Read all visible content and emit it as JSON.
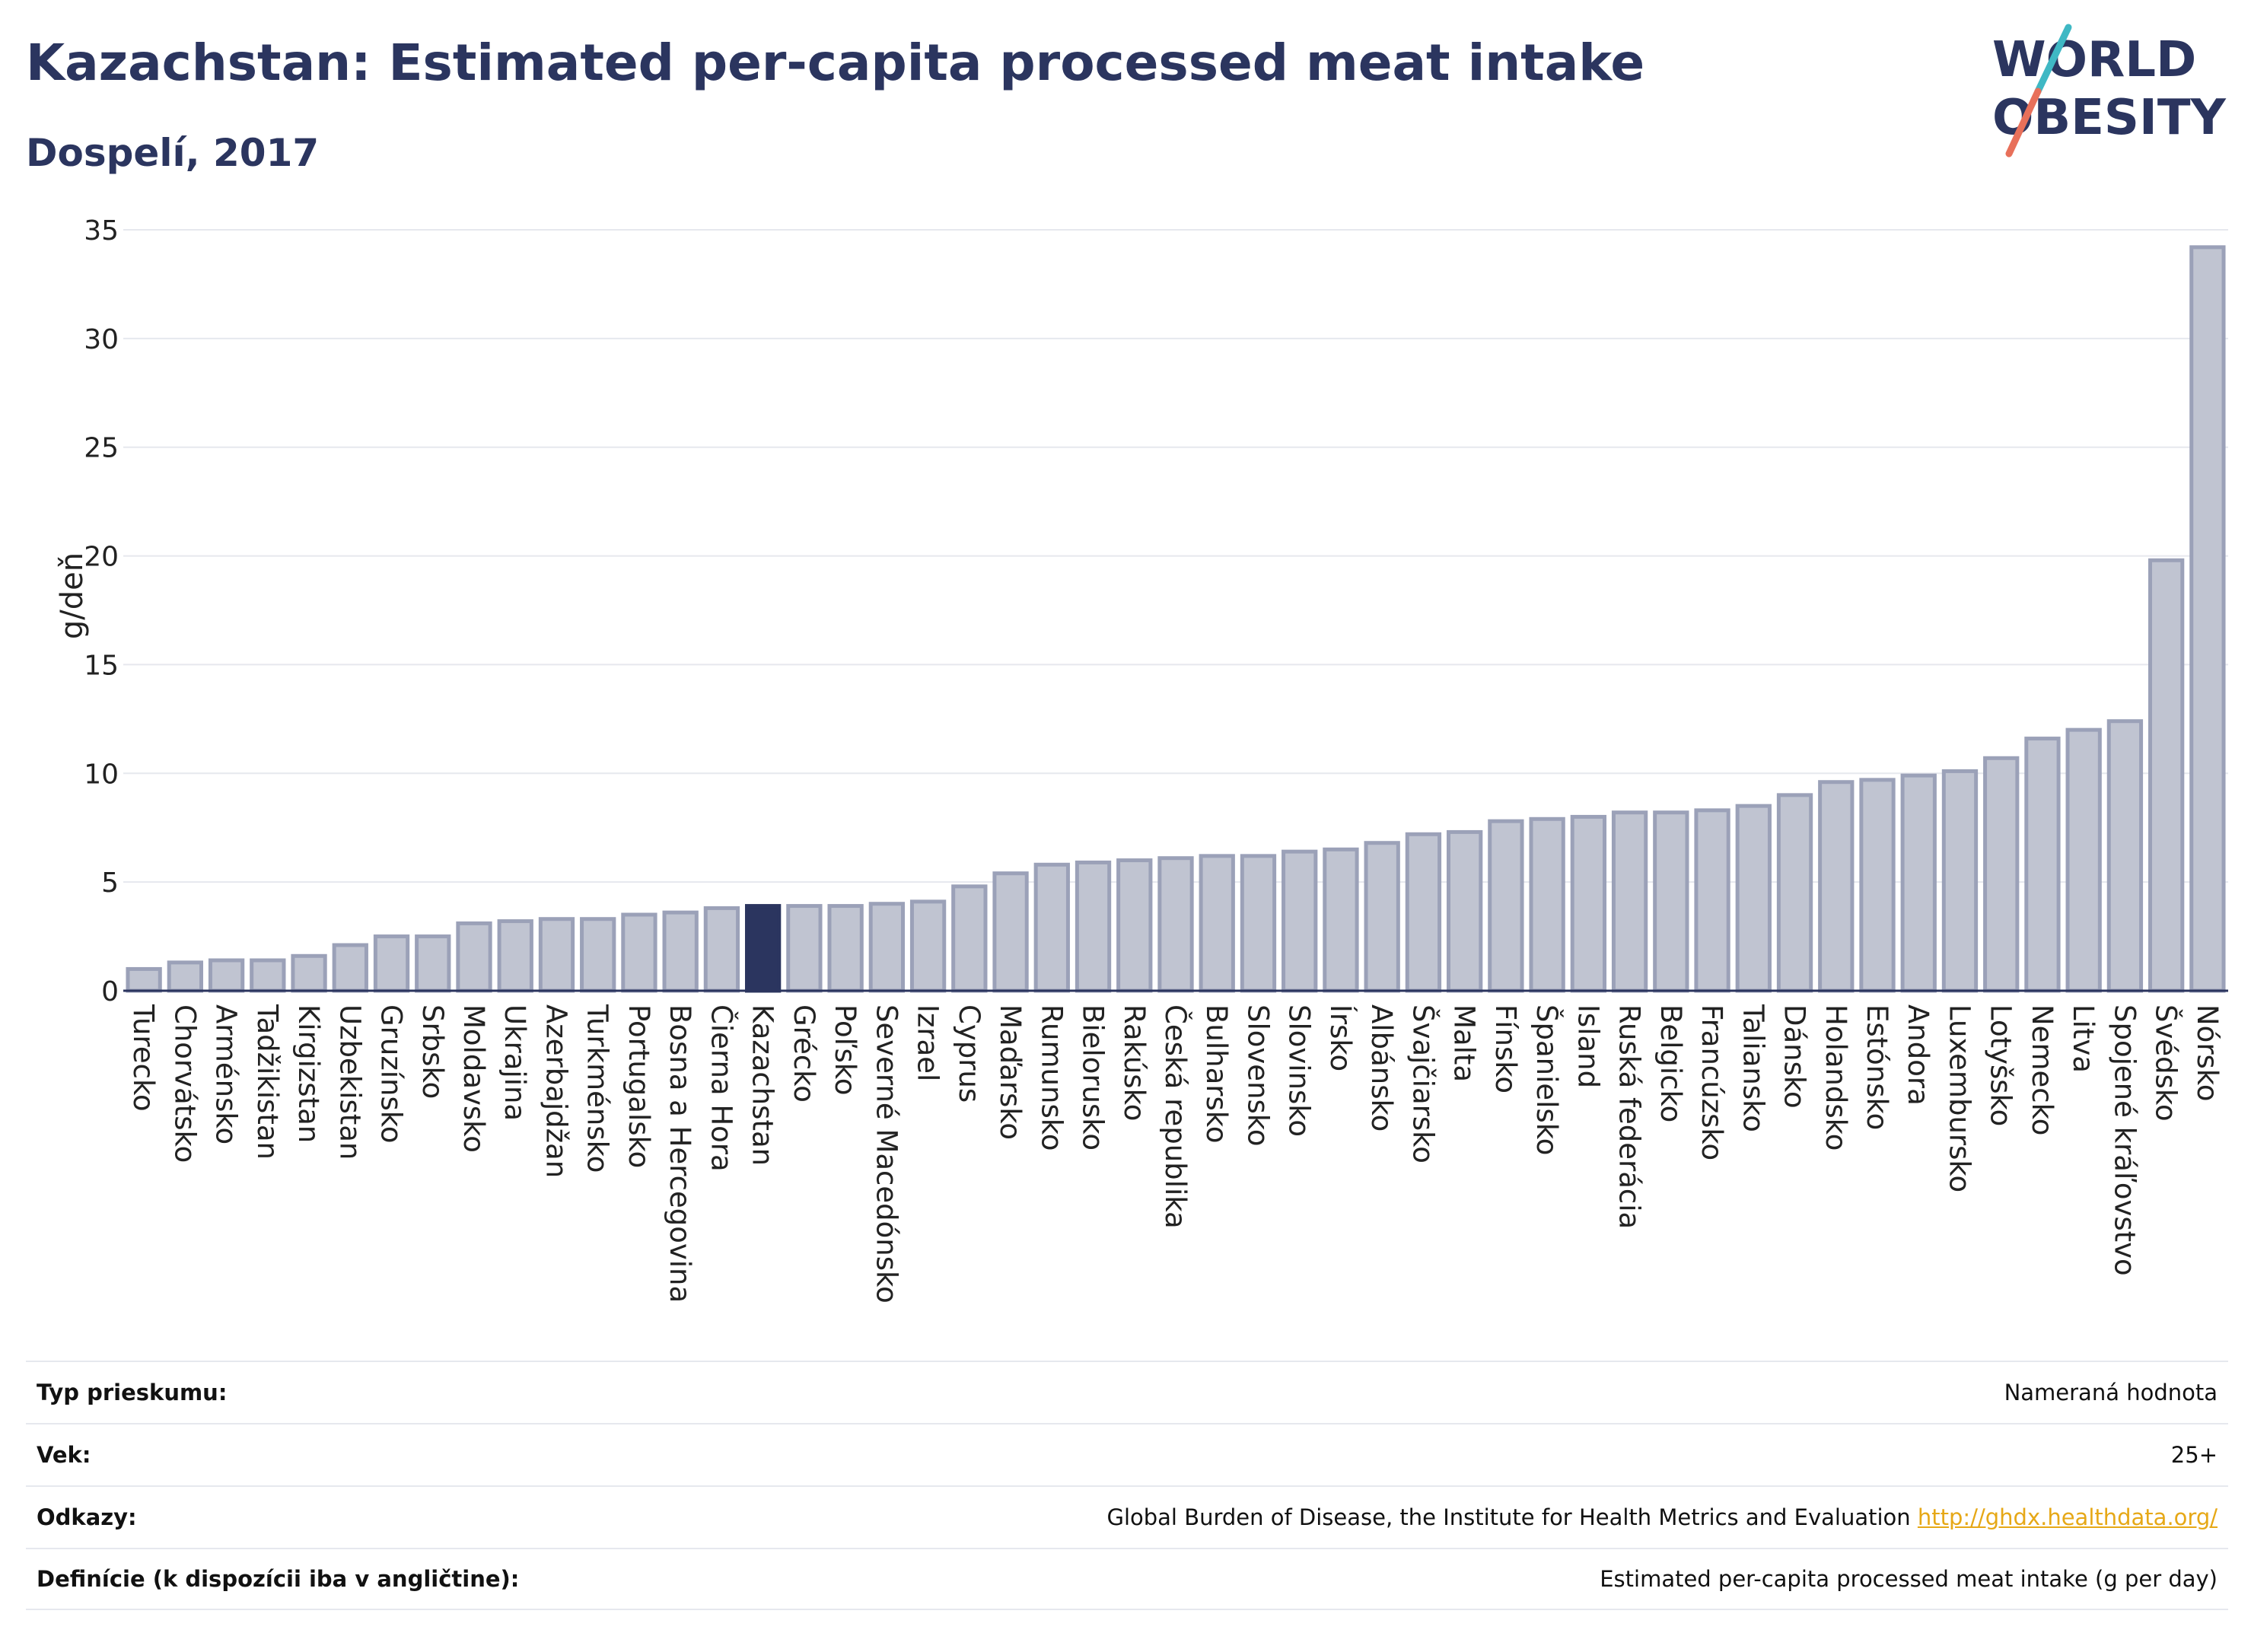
{
  "header": {
    "title": "Kazachstan: Estimated per-capita processed meat intake",
    "subtitle": "Dospelí, 2017"
  },
  "logo": {
    "line1": "WORLD",
    "line2": "OBESITY",
    "colors": {
      "text": "#2b355f",
      "slash_top": "#3fb8c4",
      "slash_bottom": "#e8705a"
    }
  },
  "chart_data": {
    "type": "bar",
    "title": "Kazachstan: Estimated per-capita processed meat intake",
    "subtitle": "Dospelí, 2017",
    "ylabel": "g/deň",
    "xlabel": "",
    "ylim": [
      0,
      35
    ],
    "yticks": [
      0,
      5,
      10,
      15,
      20,
      25,
      30,
      35
    ],
    "grid": true,
    "highlight": "Kazachstan",
    "colors": {
      "bar": "#c0c4d1",
      "bar_edge": "#9ba1b8",
      "highlight": "#2b355f",
      "axis": "#2b355f",
      "grid": "#e6e8ee"
    },
    "categories": [
      "Turecko",
      "Chorvátsko",
      "Arménsko",
      "Tadžikistan",
      "Kirgizstan",
      "Uzbekistan",
      "Gruzínsko",
      "Srbsko",
      "Moldavsko",
      "Ukrajina",
      "Azerbajdžan",
      "Turkménsko",
      "Portugalsko",
      "Bosna a Hercegovina",
      "Čierna Hora",
      "Kazachstan",
      "Grécko",
      "Poľsko",
      "Severné Macedónsko",
      "Izrael",
      "Cyprus",
      "Maďarsko",
      "Rumunsko",
      "Bielorusko",
      "Rakúsko",
      "Česká republika",
      "Bulharsko",
      "Slovensko",
      "Slovinsko",
      "Írsko",
      "Albánsko",
      "Švajčiarsko",
      "Malta",
      "Fínsko",
      "Španielsko",
      "Island",
      "Ruská federácia",
      "Belgicko",
      "Francúzsko",
      "Taliansko",
      "Dánsko",
      "Holandsko",
      "Estónsko",
      "Andora",
      "Luxembursko",
      "Lotyšsko",
      "Nemecko",
      "Litva",
      "Spojené kráľovstvo",
      "Švédsko",
      "Nórsko"
    ],
    "values": [
      1.0,
      1.3,
      1.4,
      1.4,
      1.6,
      2.1,
      2.5,
      2.5,
      3.1,
      3.2,
      3.3,
      3.3,
      3.5,
      3.6,
      3.8,
      3.9,
      3.9,
      3.9,
      4.0,
      4.1,
      4.8,
      5.4,
      5.8,
      5.9,
      6.0,
      6.1,
      6.2,
      6.2,
      6.4,
      6.5,
      6.8,
      7.2,
      7.3,
      7.8,
      7.9,
      8.0,
      8.2,
      8.2,
      8.3,
      8.5,
      9.0,
      9.6,
      9.7,
      9.9,
      10.1,
      10.7,
      11.6,
      12.0,
      12.4,
      19.8,
      34.2
    ]
  },
  "meta": {
    "rows": [
      {
        "key": "Typ prieskumu:",
        "value": "Nameraná hodnota",
        "link": ""
      },
      {
        "key": "Vek:",
        "value": "25+",
        "link": ""
      },
      {
        "key": "Odkazy:",
        "value": "Global Burden of Disease, the Institute for Health Metrics and Evaluation",
        "link": "http://ghdx.healthdata.org/"
      },
      {
        "key": "Definície (k dispozícii iba v angličtine):",
        "value": "Estimated per-capita processed meat intake (g per day)",
        "link": ""
      }
    ]
  }
}
